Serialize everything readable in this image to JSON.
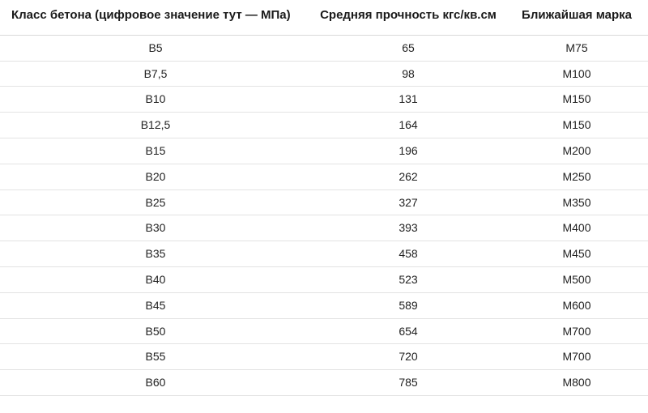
{
  "table": {
    "columns": [
      "Класс бетона (цифровое значение тут — МПа)",
      "Средняя прочность кгс/кв.см",
      "Ближайшая марка"
    ],
    "rows": [
      [
        "В5",
        "65",
        "М75"
      ],
      [
        "В7,5",
        "98",
        "М100"
      ],
      [
        "В10",
        "131",
        "М150"
      ],
      [
        "В12,5",
        "164",
        "М150"
      ],
      [
        "В15",
        "196",
        "М200"
      ],
      [
        "В20",
        "262",
        "М250"
      ],
      [
        "В25",
        "327",
        "М350"
      ],
      [
        "В30",
        "393",
        "М400"
      ],
      [
        "В35",
        "458",
        "М450"
      ],
      [
        "В40",
        "523",
        "М500"
      ],
      [
        "В45",
        "589",
        "М600"
      ],
      [
        "В50",
        "654",
        "М700"
      ],
      [
        "В55",
        "720",
        "М700"
      ],
      [
        "В60",
        "785",
        "М800"
      ]
    ],
    "header_fontsize": 15,
    "cell_fontsize": 14,
    "header_color": "#1a1a1a",
    "cell_color": "#222222",
    "border_color": "#e3e3e3",
    "header_border_color": "#d9d9d9",
    "background_color": "#ffffff"
  }
}
